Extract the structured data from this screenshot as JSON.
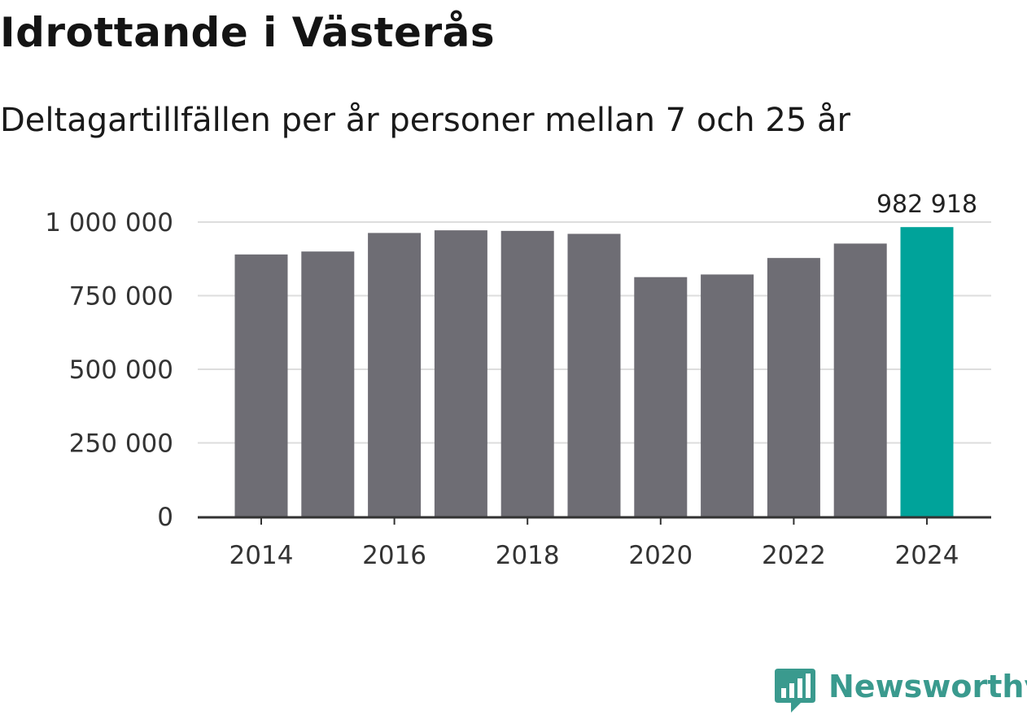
{
  "title": "Idrottande i Västerås",
  "subtitle": "Deltagartillfällen per år personer mellan 7 och 25 år",
  "branding": {
    "logo_text": "Newsworthy",
    "logo_icon": "bar-chart-badge-icon",
    "logo_color": "#3a9a8e"
  },
  "colors": {
    "bar_default": "#6e6d74",
    "bar_highlight": "#00a39a",
    "grid": "#dddddd",
    "axis": "#333333",
    "text": "#333333"
  },
  "chart_data": {
    "type": "bar",
    "title": "Idrottande i Västerås",
    "subtitle": "Deltagartillfällen per år personer mellan 7 och 25 år",
    "xlabel": "",
    "ylabel": "",
    "categories": [
      "2014",
      "2015",
      "2016",
      "2017",
      "2018",
      "2019",
      "2020",
      "2021",
      "2022",
      "2023",
      "2024"
    ],
    "values": [
      890000,
      900000,
      963000,
      972000,
      970000,
      960000,
      813000,
      822000,
      878000,
      927000,
      982918
    ],
    "highlight_index": 10,
    "annotation": {
      "index": 10,
      "label": "982 918"
    },
    "ylim": [
      0,
      1000000
    ],
    "yticks": [
      0,
      250000,
      500000,
      750000,
      1000000
    ],
    "ytick_labels": [
      "0",
      "250 000",
      "500 000",
      "750 000",
      "1 000 000"
    ],
    "xtick_labels": [
      "2014",
      "2016",
      "2018",
      "2020",
      "2022",
      "2024"
    ],
    "xtick_indices": [
      0,
      2,
      4,
      6,
      8,
      10
    ],
    "grid": true,
    "legend": "none"
  }
}
